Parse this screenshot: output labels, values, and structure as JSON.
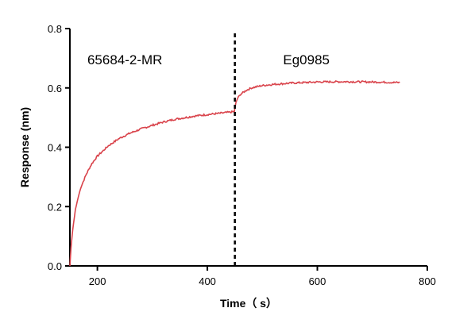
{
  "chart_data": {
    "type": "line",
    "title": "",
    "xlabel": "Time（ s）",
    "ylabel": "Response (nm)",
    "xlim": [
      150,
      800
    ],
    "ylim": [
      0,
      0.8
    ],
    "xticks": [
      200,
      400,
      600,
      800
    ],
    "yticks": [
      0.0,
      0.2,
      0.4,
      0.6,
      0.8
    ],
    "x_tick_labels": [
      "200",
      "400",
      "600",
      "800"
    ],
    "y_tick_labels": [
      "0.0",
      "0.2",
      "0.4",
      "0.6",
      "0.8"
    ],
    "grid": false,
    "annotations": [
      {
        "text": "65684-2-MR",
        "x": 250,
        "y": 0.695
      },
      {
        "text": "Eg0985",
        "x": 580,
        "y": 0.695
      }
    ],
    "vline": {
      "x": 450,
      "style": "dashed",
      "color": "#000000"
    },
    "series": [
      {
        "color": "#d9434b",
        "x": [
          150,
          152,
          155,
          160,
          165,
          170,
          180,
          190,
          200,
          220,
          240,
          260,
          280,
          300,
          320,
          340,
          360,
          380,
          400,
          420,
          440,
          449,
          450,
          452,
          455,
          460,
          470,
          480,
          500,
          520,
          550,
          600,
          650,
          700,
          750
        ],
        "y": [
          0.0,
          0.06,
          0.12,
          0.19,
          0.23,
          0.265,
          0.31,
          0.345,
          0.37,
          0.405,
          0.43,
          0.448,
          0.462,
          0.474,
          0.485,
          0.494,
          0.5,
          0.506,
          0.51,
          0.514,
          0.518,
          0.52,
          0.53,
          0.55,
          0.565,
          0.578,
          0.591,
          0.6,
          0.608,
          0.612,
          0.616,
          0.62,
          0.621,
          0.62,
          0.618
        ]
      }
    ]
  },
  "colors": {
    "line": "#d9434b",
    "axis": "#000000"
  }
}
